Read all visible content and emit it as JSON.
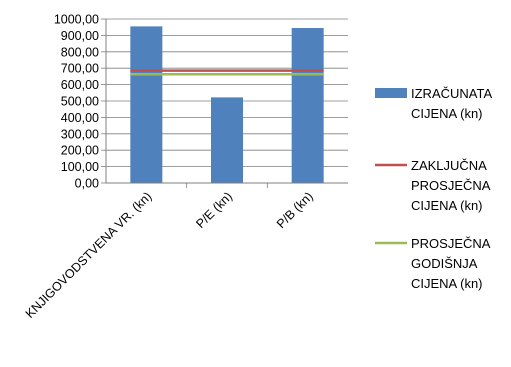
{
  "chart_data": {
    "type": "bar",
    "categories": [
      "KNJIGOVODSTVENA VR. (kn)",
      "P/E (kn)",
      "P/B (kn)"
    ],
    "series": [
      {
        "name": "IZRAČUNATA CIJENA (kn)",
        "kind": "bar",
        "color": "#4F81BD",
        "values": [
          955,
          522,
          945
        ]
      },
      {
        "name": "ZAKLJUČNA PROSJEČNA CIJENA (kn)",
        "kind": "line",
        "color": "#C0504D",
        "value": 685
      },
      {
        "name": "PROSJEČNA GODIŠNJA CIJENA (kn)",
        "kind": "line",
        "color": "#9BBB59",
        "value": 663
      }
    ],
    "ylim": [
      0,
      1000
    ],
    "ytick_labels": [
      "0,00",
      "100,00",
      "200,00",
      "300,00",
      "400,00",
      "500,00",
      "600,00",
      "700,00",
      "800,00",
      "900,00",
      "1000,00"
    ],
    "grid": true,
    "legend_position": "right",
    "legend_lines": [
      [
        "IZRAČUNATA",
        "CIJENA (kn)"
      ],
      [
        "ZAKLJUČNA",
        "PROSJEČNA",
        "CIJENA (kn)"
      ],
      [
        "PROSJEČNA",
        "GODIŠNJA",
        "CIJENA (kn)"
      ]
    ]
  }
}
